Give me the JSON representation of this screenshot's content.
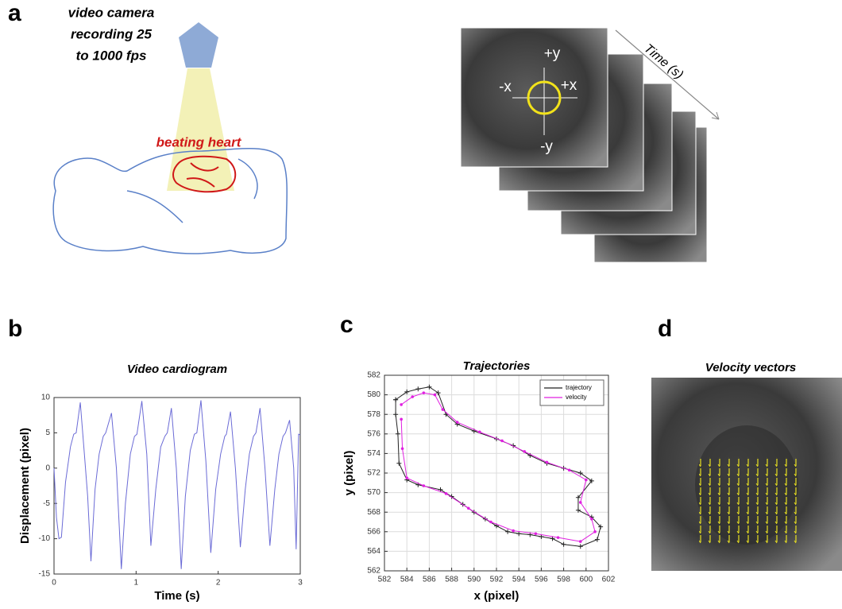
{
  "panels": {
    "a": {
      "label": "a",
      "camera_text": [
        "video camera",
        "recording 25",
        "to 1000 fps"
      ],
      "heart_text": "beating heart",
      "axes": [
        "+y",
        "-x",
        "+x",
        "-y"
      ],
      "time_label": "Time (s)"
    },
    "b": {
      "label": "b"
    },
    "c": {
      "label": "c"
    },
    "d": {
      "label": "d",
      "title": "Velocity vectors"
    }
  },
  "chart_data": [
    {
      "type": "line",
      "title": "Video cardiogram",
      "x_label": "Time (s)",
      "y_label": "Displacement (pixel)",
      "color": "#6b6bd6",
      "grid": false,
      "x": [
        0,
        0.03,
        0.06,
        0.09,
        0.14,
        0.2,
        0.24,
        0.27,
        0.32,
        0.37,
        0.41,
        0.45,
        0.5,
        0.55,
        0.6,
        0.63,
        0.7,
        0.76,
        0.82,
        0.87,
        0.93,
        0.98,
        1.01,
        1.07,
        1.13,
        1.18,
        1.24,
        1.3,
        1.35,
        1.38,
        1.43,
        1.49,
        1.55,
        1.6,
        1.66,
        1.71,
        1.74,
        1.79,
        1.85,
        1.91,
        1.97,
        2.03,
        2.08,
        2.1,
        2.15,
        2.21,
        2.27,
        2.33,
        2.38,
        2.43,
        2.46,
        2.51,
        2.57,
        2.63,
        2.69,
        2.74,
        2.79,
        2.82,
        2.87,
        2.92,
        2.95,
        2.98,
        3
      ],
      "values": [
        0,
        -7,
        -10,
        -9.8,
        -2,
        3,
        4.8,
        5,
        9.3,
        2,
        -4,
        -13.2,
        -3,
        2,
        4.5,
        5,
        7.8,
        0,
        -14.3,
        -5,
        2,
        4.5,
        4.8,
        9.5,
        2,
        -11,
        -3,
        3,
        4.5,
        5,
        8.5,
        0,
        -14.3,
        -4,
        2.5,
        4.8,
        5,
        9.6,
        1,
        -12,
        -3,
        2,
        4.5,
        4.8,
        8,
        0,
        -11.2,
        -3,
        2,
        4.5,
        5,
        8.5,
        0,
        -11,
        -3,
        2,
        4.5,
        5,
        6.8,
        0,
        -11.5,
        4.8,
        4.7
      ],
      "xlim": [
        0,
        3
      ],
      "xticks": [
        0,
        1,
        2,
        3
      ],
      "ylim": [
        -15,
        10
      ],
      "yticks": [
        -15,
        -10,
        -5,
        0,
        5,
        10
      ]
    },
    {
      "type": "line",
      "title": "Trajectories",
      "x_label": "x (pixel)",
      "y_label": "y (pixel)",
      "grid": true,
      "legend": "upper right",
      "series": [
        {
          "name": "trajectory",
          "color": "#222222",
          "marker": "+",
          "x": [
            583,
            584,
            585,
            586,
            586.8,
            587.5,
            588.5,
            590,
            592,
            593.5,
            595,
            596.5,
            598,
            599.5,
            600.5,
            599.3,
            599.3,
            600.5,
            601.3,
            601,
            599.5,
            598,
            597,
            596,
            595,
            594,
            593,
            592,
            591,
            590,
            589,
            588,
            587,
            585,
            584,
            583.3,
            583.2,
            583,
            583
          ],
          "values": [
            579.5,
            580.3,
            580.6,
            580.8,
            580.2,
            578,
            577,
            576.3,
            575.5,
            574.8,
            573.8,
            573,
            572.5,
            572,
            571.2,
            569.5,
            568.2,
            567.5,
            566.5,
            565.2,
            564.5,
            564.7,
            565.3,
            565.5,
            565.7,
            565.8,
            566,
            566.6,
            567.3,
            568,
            568.8,
            569.6,
            570.3,
            570.8,
            571.3,
            573,
            576,
            578,
            579.5
          ]
        },
        {
          "name": "velocity",
          "color": "#e020e0",
          "marker": "o",
          "x": [
            583.5,
            584.5,
            585.5,
            586.5,
            587.2,
            588.5,
            590.5,
            592.5,
            594.5,
            596.5,
            598.5,
            600,
            599.5,
            600.5,
            600.8,
            599.5,
            597.5,
            595.5,
            593.5,
            591.5,
            589.5,
            587.5,
            585.5,
            584,
            583.6,
            583.5
          ],
          "values": [
            579,
            579.8,
            580.2,
            580,
            578.5,
            577.2,
            576.2,
            575.3,
            574.2,
            573.1,
            572.3,
            571.3,
            569,
            567.3,
            566,
            565,
            565.4,
            565.8,
            566.1,
            567,
            568.4,
            569.9,
            570.7,
            571.5,
            574.5,
            577.5
          ]
        }
      ],
      "xlim": [
        582,
        602
      ],
      "xticks": [
        582,
        584,
        586,
        588,
        590,
        592,
        594,
        596,
        598,
        600,
        602
      ],
      "ylim": [
        562,
        582
      ],
      "yticks": [
        562,
        564,
        566,
        568,
        570,
        572,
        574,
        576,
        578,
        580,
        582
      ]
    }
  ]
}
